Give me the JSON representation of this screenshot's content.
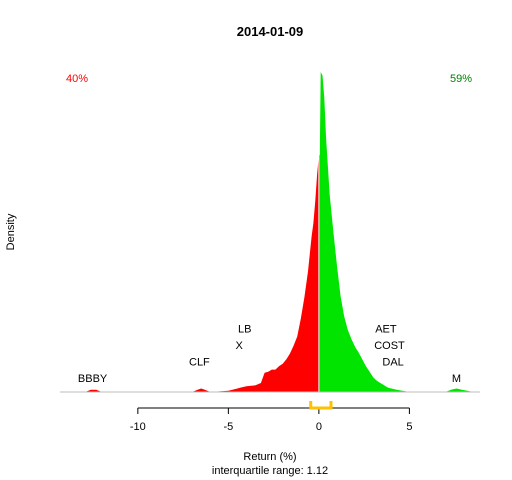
{
  "chart_data": {
    "type": "area",
    "title": "2014-01-09",
    "xlabel": "Return (%)",
    "ylabel": "Density",
    "subtitle": "interquartile range: 1.12",
    "xlim": [
      -14.3,
      8.9
    ],
    "ylim": [
      0,
      1.0
    ],
    "xticks": [
      -10,
      -5,
      0,
      5
    ],
    "split_at": 0,
    "negative_pct_label": "40%",
    "positive_pct_label": "59%",
    "colors": {
      "negative": "#ff0000",
      "positive": "#00e400",
      "iqr": "#ffc000",
      "axis": "#000000"
    },
    "iqr": [
      -0.45,
      0.67
    ],
    "density": {
      "x": [
        -14.0,
        -12.9,
        -12.6,
        -12.3,
        -12.0,
        -7.0,
        -6.7,
        -6.5,
        -6.3,
        -6.0,
        -5.0,
        -4.5,
        -4.3,
        -4.0,
        -3.5,
        -3.2,
        -3.0,
        -2.8,
        -2.6,
        -2.4,
        -2.2,
        -2.0,
        -1.8,
        -1.6,
        -1.4,
        -1.2,
        -1.0,
        -0.8,
        -0.6,
        -0.4,
        -0.3,
        -0.2,
        -0.1,
        0.0,
        0.05,
        0.1,
        0.2,
        0.3,
        0.4,
        0.5,
        0.6,
        0.8,
        1.0,
        1.2,
        1.4,
        1.6,
        1.8,
        2.0,
        2.2,
        2.4,
        2.6,
        2.8,
        3.0,
        3.2,
        3.4,
        3.6,
        3.8,
        4.0,
        4.3,
        4.6,
        5.0,
        5.3,
        7.0,
        7.3,
        7.6,
        7.9,
        8.2,
        8.5
      ],
      "y": [
        0.0,
        0.0,
        0.007,
        0.007,
        0.0,
        0.0,
        0.007,
        0.011,
        0.007,
        0.0,
        0.004,
        0.011,
        0.014,
        0.018,
        0.021,
        0.028,
        0.06,
        0.063,
        0.07,
        0.07,
        0.081,
        0.088,
        0.102,
        0.12,
        0.144,
        0.173,
        0.229,
        0.296,
        0.377,
        0.486,
        0.528,
        0.598,
        0.68,
        0.74,
        0.74,
        1.0,
        0.989,
        0.919,
        0.792,
        0.704,
        0.616,
        0.5,
        0.394,
        0.299,
        0.236,
        0.194,
        0.165,
        0.141,
        0.123,
        0.102,
        0.081,
        0.063,
        0.046,
        0.035,
        0.028,
        0.021,
        0.014,
        0.011,
        0.007,
        0.004,
        0.0,
        0.0,
        0.0,
        0.007,
        0.011,
        0.007,
        0.004,
        0.0
      ]
    },
    "annotations": [
      {
        "text": "BBBY",
        "x": -12.5,
        "level": 1
      },
      {
        "text": "CLF",
        "x": -6.6,
        "level": 2
      },
      {
        "text": "X",
        "x": -4.4,
        "level": 3
      },
      {
        "text": "LB",
        "x": -4.1,
        "level": 4
      },
      {
        "text": "DAL",
        "x": 4.1,
        "level": 2
      },
      {
        "text": "COST",
        "x": 3.9,
        "level": 3
      },
      {
        "text": "AET",
        "x": 3.7,
        "level": 4
      },
      {
        "text": "M",
        "x": 7.6,
        "level": 1
      }
    ]
  }
}
